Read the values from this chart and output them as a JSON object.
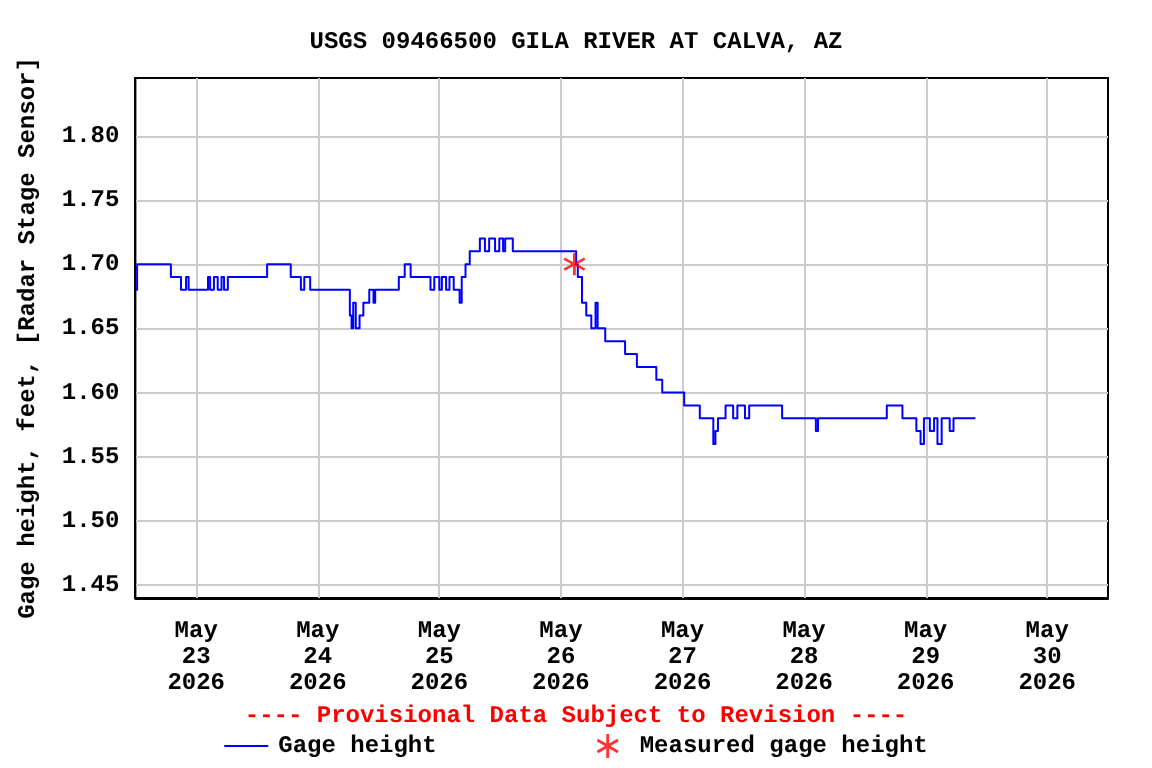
{
  "chart_data": {
    "type": "step",
    "title": "USGS 09466500 GILA RIVER AT CALVA, AZ",
    "ylabel": "Gage height, feet, [Radar Stage Sensor]",
    "annotations": [
      "---- Provisional Data Subject to Revision ----"
    ],
    "xlim": [
      "2026-05-22T12:00",
      "2026-05-30T12:00"
    ],
    "xticks": [
      {
        "value": "2026-05-23",
        "label": "May\n23\n2026"
      },
      {
        "value": "2026-05-24",
        "label": "May\n24\n2026"
      },
      {
        "value": "2026-05-25",
        "label": "May\n25\n2026"
      },
      {
        "value": "2026-05-26",
        "label": "May\n26\n2026"
      },
      {
        "value": "2026-05-27",
        "label": "May\n27\n2026"
      },
      {
        "value": "2026-05-28",
        "label": "May\n28\n2026"
      },
      {
        "value": "2026-05-29",
        "label": "May\n29\n2026"
      },
      {
        "value": "2026-05-30",
        "label": "May\n30\n2026"
      }
    ],
    "ylim": [
      1.44,
      1.845
    ],
    "yticks": [
      {
        "value": 1.45,
        "label": "1.45"
      },
      {
        "value": 1.5,
        "label": "1.50"
      },
      {
        "value": 1.55,
        "label": "1.55"
      },
      {
        "value": 1.6,
        "label": "1.60"
      },
      {
        "value": 1.65,
        "label": "1.65"
      },
      {
        "value": 1.7,
        "label": "1.70"
      },
      {
        "value": 1.75,
        "label": "1.75"
      },
      {
        "value": 1.8,
        "label": "1.80"
      }
    ],
    "grid": true,
    "legend": "bottom",
    "line_style": "solid",
    "series": [
      {
        "name": "Gage height",
        "color": "#0000ff",
        "marker": "none",
        "x": [
          "2026-05-22T12:00",
          "2026-05-22T12:20",
          "2026-05-22T19:00",
          "2026-05-22T21:00",
          "2026-05-22T22:00",
          "2026-05-22T22:30",
          "2026-05-23T02:20",
          "2026-05-23T02:45",
          "2026-05-23T03:30",
          "2026-05-23T04:15",
          "2026-05-23T05:00",
          "2026-05-23T05:30",
          "2026-05-23T06:15",
          "2026-05-23T14:00",
          "2026-05-23T18:40",
          "2026-05-23T20:40",
          "2026-05-23T21:20",
          "2026-05-23T22:30",
          "2026-05-24T06:20",
          "2026-05-24T06:40",
          "2026-05-24T07:00",
          "2026-05-24T07:30",
          "2026-05-24T08:15",
          "2026-05-24T09:00",
          "2026-05-24T10:10",
          "2026-05-24T11:00",
          "2026-05-24T11:20",
          "2026-05-24T16:00",
          "2026-05-24T17:10",
          "2026-05-24T18:20",
          "2026-05-24T22:15",
          "2026-05-24T23:00",
          "2026-05-25T00:00",
          "2026-05-25T00:30",
          "2026-05-25T01:20",
          "2026-05-25T02:00",
          "2026-05-25T02:50",
          "2026-05-25T04:00",
          "2026-05-25T04:25",
          "2026-05-25T05:10",
          "2026-05-25T06:00",
          "2026-05-25T08:00",
          "2026-05-25T09:00",
          "2026-05-25T09:50",
          "2026-05-25T11:00",
          "2026-05-25T11:50",
          "2026-05-25T12:35",
          "2026-05-25T13:00",
          "2026-05-25T14:30",
          "2026-05-26T03:00",
          "2026-05-26T03:20",
          "2026-05-26T04:10",
          "2026-05-26T05:00",
          "2026-05-26T06:00",
          "2026-05-26T06:50",
          "2026-05-26T07:15",
          "2026-05-26T08:45",
          "2026-05-26T12:40",
          "2026-05-26T15:00",
          "2026-05-26T18:50",
          "2026-05-26T20:00",
          "2026-05-27T00:20",
          "2026-05-27T03:25",
          "2026-05-27T06:05",
          "2026-05-27T06:30",
          "2026-05-27T07:00",
          "2026-05-27T08:30",
          "2026-05-27T10:00",
          "2026-05-27T10:50",
          "2026-05-27T12:20",
          "2026-05-27T13:10",
          "2026-05-27T19:40",
          "2026-05-28T02:20",
          "2026-05-28T02:45",
          "2026-05-28T16:20",
          "2026-05-28T19:25",
          "2026-05-28T22:10",
          "2026-05-28T23:00",
          "2026-05-28T23:40",
          "2026-05-29T00:50",
          "2026-05-29T01:40",
          "2026-05-29T02:20",
          "2026-05-29T03:10",
          "2026-05-29T04:45",
          "2026-05-29T05:30",
          "2026-05-29T09:50"
        ],
        "values": [
          1.68,
          1.7,
          1.69,
          1.68,
          1.69,
          1.68,
          1.69,
          1.68,
          1.69,
          1.68,
          1.69,
          1.68,
          1.69,
          1.7,
          1.69,
          1.68,
          1.69,
          1.68,
          1.66,
          1.65,
          1.67,
          1.65,
          1.66,
          1.67,
          1.68,
          1.67,
          1.68,
          1.69,
          1.7,
          1.69,
          1.68,
          1.69,
          1.68,
          1.69,
          1.68,
          1.69,
          1.68,
          1.67,
          1.69,
          1.7,
          1.71,
          1.72,
          1.71,
          1.72,
          1.71,
          1.72,
          1.71,
          1.72,
          1.71,
          1.7,
          1.69,
          1.67,
          1.66,
          1.65,
          1.67,
          1.65,
          1.64,
          1.63,
          1.62,
          1.61,
          1.6,
          1.59,
          1.58,
          1.56,
          1.57,
          1.58,
          1.59,
          1.58,
          1.59,
          1.58,
          1.59,
          1.58,
          1.57,
          1.58,
          1.59,
          1.58,
          1.57,
          1.56,
          1.58,
          1.57,
          1.58,
          1.56,
          1.58,
          1.57,
          1.58,
          1.58
        ]
      },
      {
        "name": "Measured gage height",
        "type": "scatter",
        "color": "#ff0000",
        "marker": "cross",
        "x": [
          "2026-05-26T02:40"
        ],
        "values": [
          1.7
        ]
      }
    ]
  }
}
